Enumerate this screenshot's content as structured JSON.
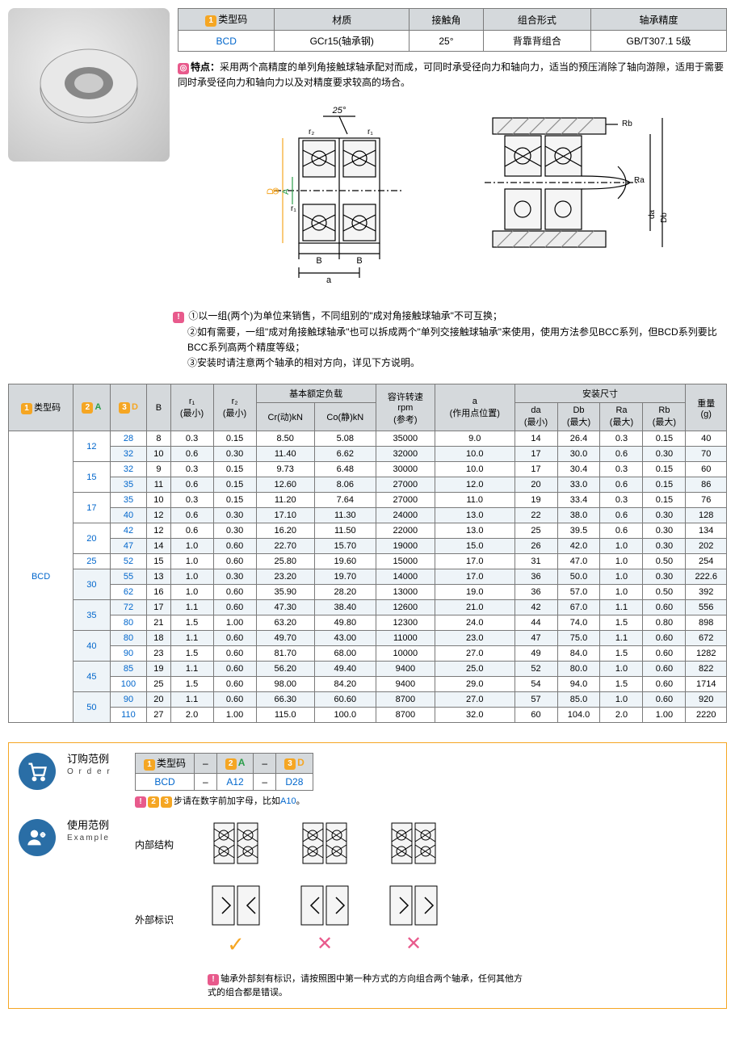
{
  "spec": {
    "headers": [
      "类型码",
      "材质",
      "接触角",
      "组合形式",
      "轴承精度"
    ],
    "num_badge": "1",
    "row": [
      "BCD",
      "GCr15(轴承钢)",
      "25°",
      "背靠背组合",
      "GB/T307.1 5级"
    ]
  },
  "feature": {
    "label": "特点：",
    "text": "采用两个高精度的单列角接触球轴承配对而成，可同时承受径向力和轴向力，适当的预压消除了轴向游隙，适用于需要同时承受径向力和轴向力以及对精度要求较高的场合。"
  },
  "diagram_labels": {
    "angle": "25°",
    "r1": "r₁",
    "r2": "r₂",
    "B": "B",
    "a": "a",
    "D3": "D",
    "A2": "A",
    "Rb": "Rb",
    "Ra": "Ra",
    "da": "da",
    "Db": "Db",
    "badge3": "3",
    "badge2": "2"
  },
  "notice": {
    "icon": "!",
    "lines": [
      "①以一组(两个)为单位来销售，不同组别的\"成对角接触球轴承\"不可互换；",
      "②如有需要，一组\"成对角接触球轴承\"也可以拆成两个\"单列交接触球轴承\"来使用，使用方法参见BCC系列，但BCD系列要比BCC系列高两个精度等级；",
      "③安装时请注意两个轴承的相对方向，详见下方说明。"
    ]
  },
  "data": {
    "head_groups": {
      "basic_load": "基本额定负载",
      "install": "安装尺寸"
    },
    "head": {
      "type": "类型码",
      "A": "A",
      "D": "D",
      "B": "B",
      "r1": "r₁\n(最小)",
      "r2": "r₂\n(最小)",
      "Cr": "Cr(动)kN",
      "Co": "Co(静)kN",
      "rpm": "容许转速\nrpm\n(参考)",
      "a": "a\n(作用点位置)",
      "da": "da\n(最小)",
      "Db": "Db\n(最大)",
      "Ra": "Ra\n(最大)",
      "Rb": "Rb\n(最大)",
      "weight": "重量\n(g)"
    },
    "type_code": "BCD",
    "rows": [
      {
        "A": "12",
        "D": "28",
        "B": "8",
        "r1": "0.3",
        "r2": "0.15",
        "Cr": "8.50",
        "Co": "5.08",
        "rpm": "35000",
        "a": "9.0",
        "da": "14",
        "Db": "26.4",
        "Ra": "0.3",
        "Rb": "0.15",
        "w": "40"
      },
      {
        "A": "",
        "D": "32",
        "B": "10",
        "r1": "0.6",
        "r2": "0.30",
        "Cr": "11.40",
        "Co": "6.62",
        "rpm": "32000",
        "a": "10.0",
        "da": "17",
        "Db": "30.0",
        "Ra": "0.6",
        "Rb": "0.30",
        "w": "70"
      },
      {
        "A": "15",
        "D": "32",
        "B": "9",
        "r1": "0.3",
        "r2": "0.15",
        "Cr": "9.73",
        "Co": "6.48",
        "rpm": "30000",
        "a": "10.0",
        "da": "17",
        "Db": "30.4",
        "Ra": "0.3",
        "Rb": "0.15",
        "w": "60"
      },
      {
        "A": "",
        "D": "35",
        "B": "11",
        "r1": "0.6",
        "r2": "0.15",
        "Cr": "12.60",
        "Co": "8.06",
        "rpm": "27000",
        "a": "12.0",
        "da": "20",
        "Db": "33.0",
        "Ra": "0.6",
        "Rb": "0.15",
        "w": "86"
      },
      {
        "A": "17",
        "D": "35",
        "B": "10",
        "r1": "0.3",
        "r2": "0.15",
        "Cr": "11.20",
        "Co": "7.64",
        "rpm": "27000",
        "a": "11.0",
        "da": "19",
        "Db": "33.4",
        "Ra": "0.3",
        "Rb": "0.15",
        "w": "76"
      },
      {
        "A": "",
        "D": "40",
        "B": "12",
        "r1": "0.6",
        "r2": "0.30",
        "Cr": "17.10",
        "Co": "11.30",
        "rpm": "24000",
        "a": "13.0",
        "da": "22",
        "Db": "38.0",
        "Ra": "0.6",
        "Rb": "0.30",
        "w": "128"
      },
      {
        "A": "20",
        "D": "42",
        "B": "12",
        "r1": "0.6",
        "r2": "0.30",
        "Cr": "16.20",
        "Co": "11.50",
        "rpm": "22000",
        "a": "13.0",
        "da": "25",
        "Db": "39.5",
        "Ra": "0.6",
        "Rb": "0.30",
        "w": "134"
      },
      {
        "A": "",
        "D": "47",
        "B": "14",
        "r1": "1.0",
        "r2": "0.60",
        "Cr": "22.70",
        "Co": "15.70",
        "rpm": "19000",
        "a": "15.0",
        "da": "26",
        "Db": "42.0",
        "Ra": "1.0",
        "Rb": "0.30",
        "w": "202"
      },
      {
        "A": "25",
        "D": "52",
        "B": "15",
        "r1": "1.0",
        "r2": "0.60",
        "Cr": "25.80",
        "Co": "19.60",
        "rpm": "15000",
        "a": "17.0",
        "da": "31",
        "Db": "47.0",
        "Ra": "1.0",
        "Rb": "0.50",
        "w": "254"
      },
      {
        "A": "30",
        "D": "55",
        "B": "13",
        "r1": "1.0",
        "r2": "0.30",
        "Cr": "23.20",
        "Co": "19.70",
        "rpm": "14000",
        "a": "17.0",
        "da": "36",
        "Db": "50.0",
        "Ra": "1.0",
        "Rb": "0.30",
        "w": "222.6"
      },
      {
        "A": "",
        "D": "62",
        "B": "16",
        "r1": "1.0",
        "r2": "0.60",
        "Cr": "35.90",
        "Co": "28.20",
        "rpm": "13000",
        "a": "19.0",
        "da": "36",
        "Db": "57.0",
        "Ra": "1.0",
        "Rb": "0.50",
        "w": "392"
      },
      {
        "A": "35",
        "D": "72",
        "B": "17",
        "r1": "1.1",
        "r2": "0.60",
        "Cr": "47.30",
        "Co": "38.40",
        "rpm": "12600",
        "a": "21.0",
        "da": "42",
        "Db": "67.0",
        "Ra": "1.1",
        "Rb": "0.60",
        "w": "556"
      },
      {
        "A": "",
        "D": "80",
        "B": "21",
        "r1": "1.5",
        "r2": "1.00",
        "Cr": "63.20",
        "Co": "49.80",
        "rpm": "12300",
        "a": "24.0",
        "da": "44",
        "Db": "74.0",
        "Ra": "1.5",
        "Rb": "0.80",
        "w": "898"
      },
      {
        "A": "40",
        "D": "80",
        "B": "18",
        "r1": "1.1",
        "r2": "0.60",
        "Cr": "49.70",
        "Co": "43.00",
        "rpm": "11000",
        "a": "23.0",
        "da": "47",
        "Db": "75.0",
        "Ra": "1.1",
        "Rb": "0.60",
        "w": "672"
      },
      {
        "A": "",
        "D": "90",
        "B": "23",
        "r1": "1.5",
        "r2": "0.60",
        "Cr": "81.70",
        "Co": "68.00",
        "rpm": "10000",
        "a": "27.0",
        "da": "49",
        "Db": "84.0",
        "Ra": "1.5",
        "Rb": "0.60",
        "w": "1282"
      },
      {
        "A": "45",
        "D": "85",
        "B": "19",
        "r1": "1.1",
        "r2": "0.60",
        "Cr": "56.20",
        "Co": "49.40",
        "rpm": "9400",
        "a": "25.0",
        "da": "52",
        "Db": "80.0",
        "Ra": "1.0",
        "Rb": "0.60",
        "w": "822"
      },
      {
        "A": "",
        "D": "100",
        "B": "25",
        "r1": "1.5",
        "r2": "0.60",
        "Cr": "98.00",
        "Co": "84.20",
        "rpm": "9400",
        "a": "29.0",
        "da": "54",
        "Db": "94.0",
        "Ra": "1.5",
        "Rb": "0.60",
        "w": "1714"
      },
      {
        "A": "50",
        "D": "90",
        "B": "20",
        "r1": "1.1",
        "r2": "0.60",
        "Cr": "66.30",
        "Co": "60.60",
        "rpm": "8700",
        "a": "27.0",
        "da": "57",
        "Db": "85.0",
        "Ra": "1.0",
        "Rb": "0.60",
        "w": "920"
      },
      {
        "A": "",
        "D": "110",
        "B": "27",
        "r1": "2.0",
        "r2": "1.00",
        "Cr": "115.0",
        "Co": "100.0",
        "rpm": "8700",
        "a": "32.0",
        "da": "60",
        "Db": "104.0",
        "Ra": "2.0",
        "Rb": "1.00",
        "w": "2220"
      }
    ]
  },
  "order": {
    "title": "订购范例",
    "title_en": "O r d e r",
    "headers": [
      "类型码",
      "–",
      "A",
      "–",
      "D"
    ],
    "row": [
      "BCD",
      "–",
      "A12",
      "–",
      "D28"
    ],
    "note_prefix": "步请在数字前加字母，比如",
    "note_example": "A10",
    "note_suffix": "。"
  },
  "usage": {
    "title": "使用范例",
    "title_en": "Example",
    "row1_label": "内部结构",
    "row2_label": "外部标识",
    "bottom_note": "轴承外部刻有标识，请按照图中第一种方式的方向组合两个轴承，任何其他方式的组合都是错误。"
  }
}
